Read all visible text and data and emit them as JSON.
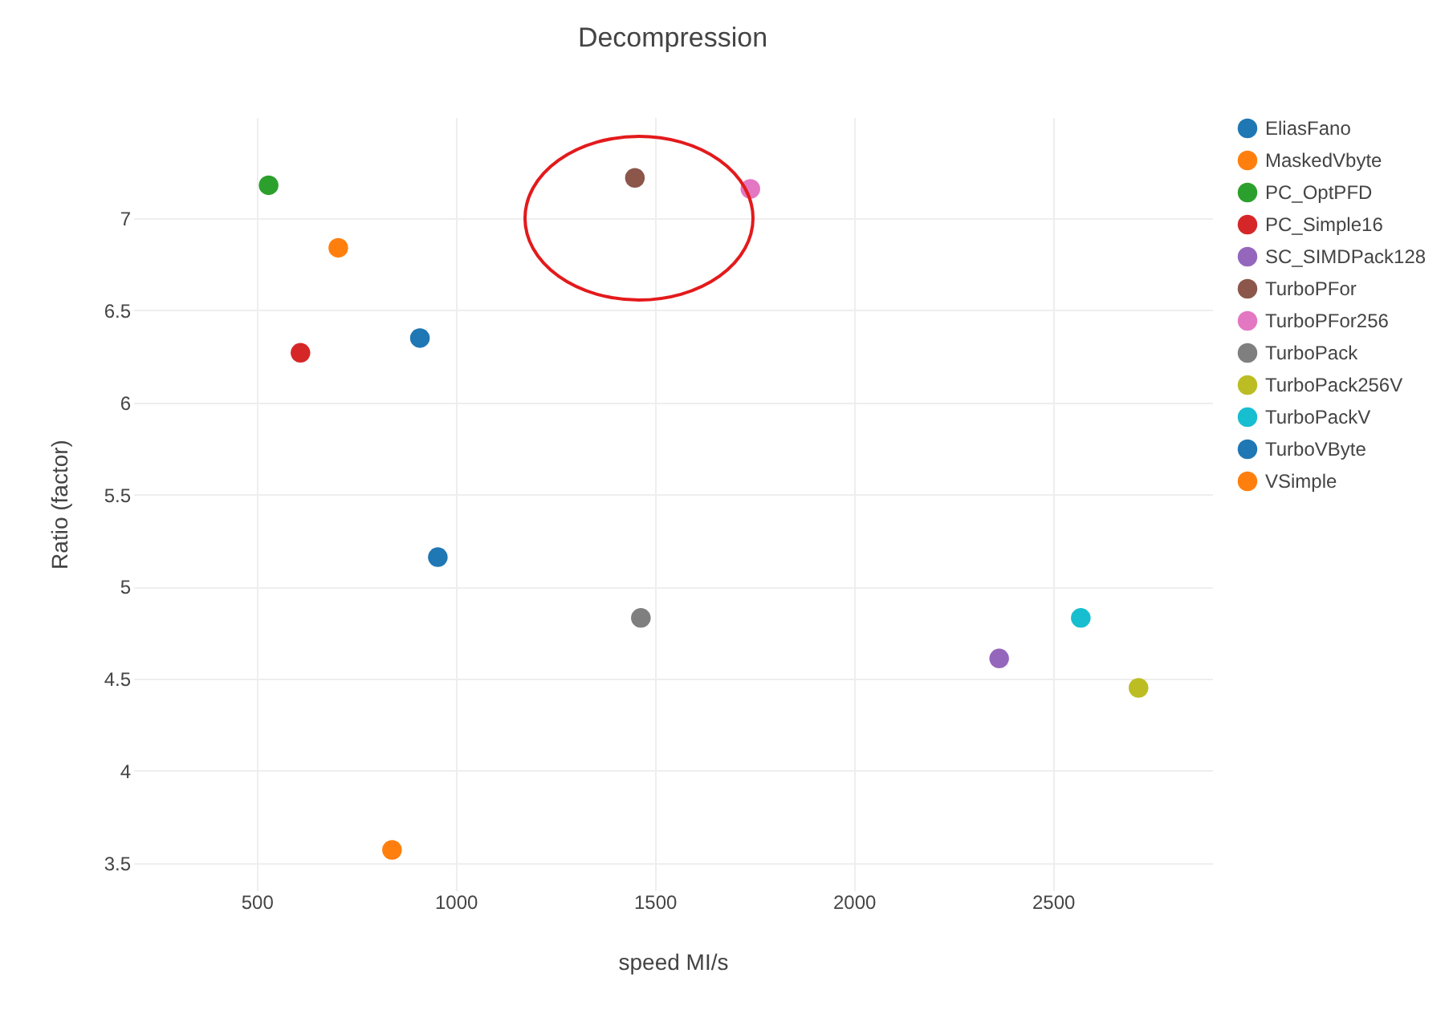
{
  "chart_data": {
    "type": "scatter",
    "title": "Decompression",
    "xlabel": "speed MI/s",
    "ylabel": "Ratio (factor)",
    "xlim": [
      190,
      2900
    ],
    "ylim": [
      3.35,
      7.55
    ],
    "xticks": [
      500,
      1000,
      1500,
      2000,
      2500
    ],
    "yticks": [
      3.5,
      4,
      4.5,
      5,
      5.5,
      6,
      6.5,
      7
    ],
    "grid": true,
    "legend": "top right",
    "marker": "circle",
    "series": [
      {
        "name": "EliasFano",
        "color": "#1f77b4",
        "x": [
          910
        ],
        "values": [
          6.35
        ]
      },
      {
        "name": "MaskedVbyte",
        "color": "#ff7f0e",
        "x": [
          705
        ],
        "values": [
          6.84
        ]
      },
      {
        "name": "PC_OptPFD",
        "color": "#2ca02c",
        "x": [
          530
        ],
        "values": [
          7.18
        ]
      },
      {
        "name": "PC_Simple16",
        "color": "#d62728",
        "x": [
          610
        ],
        "values": [
          6.27
        ]
      },
      {
        "name": "SC_SIMDPack128",
        "color": "#9467bd",
        "x": [
          2365
        ],
        "values": [
          4.61
        ]
      },
      {
        "name": "TurboPFor",
        "color": "#8c564b",
        "x": [
          1450
        ],
        "values": [
          7.22
        ]
      },
      {
        "name": "TurboPFor256",
        "color": "#e377c2",
        "x": [
          1740
        ],
        "values": [
          7.16
        ]
      },
      {
        "name": "TurboPack",
        "color": "#7f7f7f",
        "x": [
          1465
        ],
        "values": [
          4.83
        ]
      },
      {
        "name": "TurboPack256V",
        "color": "#bcbd22",
        "x": [
          2715
        ],
        "values": [
          4.45
        ]
      },
      {
        "name": "TurboPackV",
        "color": "#17becf",
        "x": [
          2570
        ],
        "values": [
          4.83
        ]
      },
      {
        "name": "TurboVByte",
        "color": "#1f77b4",
        "x": [
          955
        ],
        "values": [
          5.16
        ]
      },
      {
        "name": "VSimple",
        "color": "#ff7f0e",
        "x": [
          840
        ],
        "values": [
          3.57
        ]
      }
    ]
  }
}
